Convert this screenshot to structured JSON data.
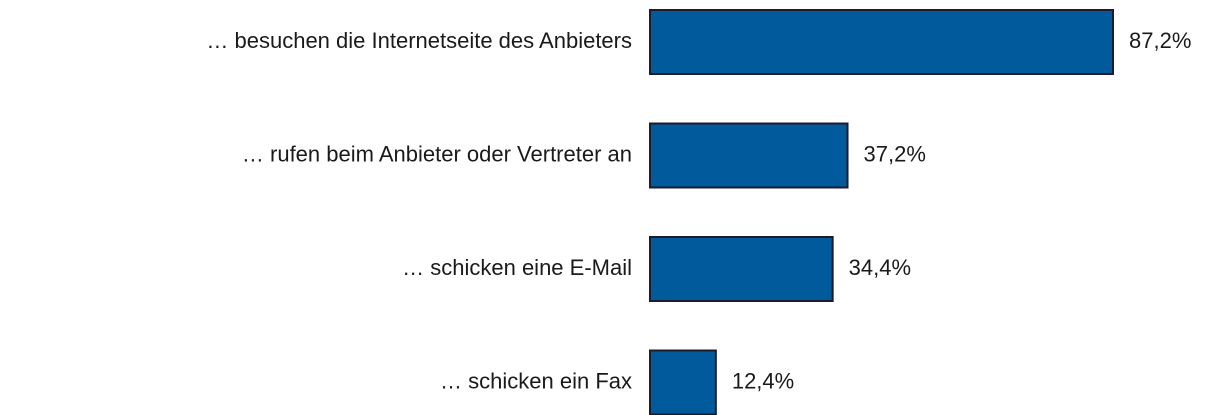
{
  "chart_data": {
    "type": "hbar",
    "categories": [
      "… besuchen die Internetseite des Anbieters",
      "… rufen beim Anbieter oder Vertreter an",
      "… schicken eine E-Mail",
      "… schicken ein Fax"
    ],
    "values": [
      87.2,
      37.2,
      34.4,
      12.4
    ],
    "value_labels": [
      "87,2%",
      "37,2%",
      "34,4%",
      "12,4%"
    ],
    "color": "#005a9c"
  }
}
